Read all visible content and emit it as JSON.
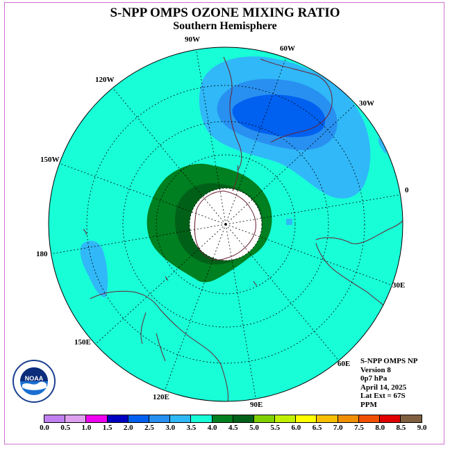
{
  "title": "S-NPP OMPS OZONE MIXING RATIO",
  "subtitle": "Southern Hemisphere",
  "longitude_labels": [
    "90W",
    "60W",
    "30W",
    "0",
    "30E",
    "60E",
    "90E",
    "120E",
    "150E",
    "180",
    "150W",
    "120W"
  ],
  "info": {
    "line1": "S-NPP OMPS NP",
    "line2": "Version 8",
    "line3": "0p7 hPa",
    "line4": "April 14, 2025",
    "line5": "Lat Ext = 67S",
    "line6": "PPM"
  },
  "logo_text": "NOAA",
  "colorbar": {
    "colors": [
      "#c080f0",
      "#e0a0f0",
      "#f000f0",
      "#0000c0",
      "#0060f0",
      "#2890f0",
      "#30b8f8",
      "#18ffd8",
      "#008020",
      "#006018",
      "#80d000",
      "#c0f000",
      "#ffff00",
      "#f8c000",
      "#f09000",
      "#f05000",
      "#e00000",
      "#806040"
    ],
    "ticks": [
      "0.0",
      "0.5",
      "1.0",
      "1.5",
      "2.0",
      "2.5",
      "3.0",
      "3.5",
      "4.0",
      "4.5",
      "5.0",
      "5.5",
      "6.0",
      "6.5",
      "7.0",
      "7.5",
      "8.0",
      "8.5",
      "9.0"
    ]
  },
  "map_colors": {
    "background": "#18ffd8",
    "band_3_0_3_5": "#30b8f8",
    "band_2_5_3_0": "#2890f0",
    "band_2_0_2_5": "#0060f0",
    "band_4_0_4_5": "#008020",
    "band_4_5_5_0": "#006018",
    "missing": "#ffffff"
  }
}
